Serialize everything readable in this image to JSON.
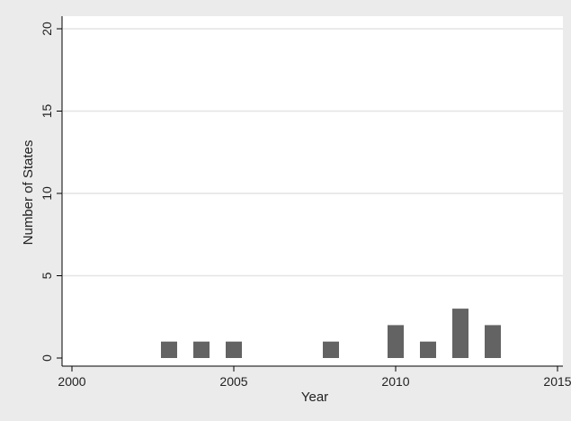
{
  "chart_data": {
    "type": "bar",
    "title": "",
    "xlabel": "Year",
    "ylabel": "Number of States",
    "x": [
      2003,
      2004,
      2005,
      2008,
      2010,
      2011,
      2012,
      2013
    ],
    "values": [
      1,
      1,
      1,
      1,
      2,
      1,
      3,
      2
    ],
    "xlim": [
      2000,
      2015
    ],
    "ylim": [
      0,
      20
    ],
    "xticks": [
      2000,
      2005,
      2010,
      2015
    ],
    "yticks": [
      0,
      5,
      10,
      15,
      20
    ],
    "xtick_labels": [
      "2000",
      "2005",
      "2010",
      "2015"
    ],
    "ytick_labels": [
      "0",
      "5",
      "10",
      "15",
      "20"
    ],
    "grid": "horizontal",
    "bar_color": "#636363",
    "plot_background": "#ffffff",
    "figure_background": "#ebebeb",
    "gridline_color": "#e4e4e4"
  }
}
